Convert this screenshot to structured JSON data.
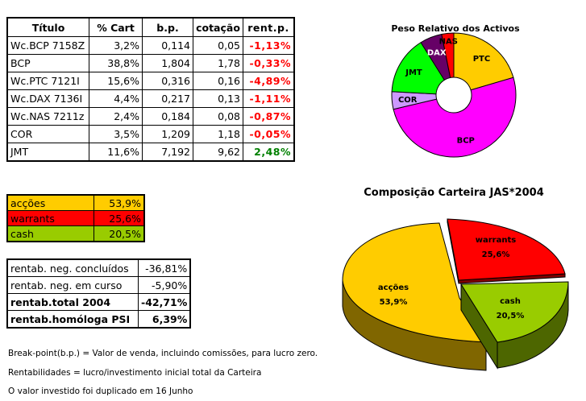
{
  "holdings_table": {
    "headers": [
      "Título",
      "% Cart",
      "b.p.",
      "cotação",
      "rent.p."
    ],
    "rows": [
      {
        "titulo": "Wc.BCP 7158Z",
        "cart": "3,2%",
        "bp": "0,114",
        "cotacao": "0,05",
        "rent": "-1,13%",
        "sign": "neg"
      },
      {
        "titulo": "BCP",
        "cart": "38,8%",
        "bp": "1,804",
        "cotacao": "1,78",
        "rent": "-0,33%",
        "sign": "neg"
      },
      {
        "titulo": "Wc.PTC 7121I",
        "cart": "15,6%",
        "bp": "0,316",
        "cotacao": "0,16",
        "rent": "-4,89%",
        "sign": "neg"
      },
      {
        "titulo": "Wc.DAX 7136I",
        "cart": "4,4%",
        "bp": "0,217",
        "cotacao": "0,13",
        "rent": "-1,11%",
        "sign": "neg"
      },
      {
        "titulo": "Wc.NAS 7211z",
        "cart": "2,4%",
        "bp": "0,184",
        "cotacao": "0,08",
        "rent": "-0,87%",
        "sign": "neg"
      },
      {
        "titulo": "COR",
        "cart": "3,5%",
        "bp": "1,209",
        "cotacao": "1,18",
        "rent": "-0,05%",
        "sign": "neg"
      },
      {
        "titulo": "JMT",
        "cart": "11,6%",
        "bp": "7,192",
        "cotacao": "9,62",
        "rent": "2,48%",
        "sign": "pos"
      }
    ]
  },
  "allocation_table": {
    "rows": [
      {
        "label": "acções",
        "value": "53,9%",
        "color": "#ffcc00"
      },
      {
        "label": "warrants",
        "value": "25,6%",
        "color": "#ff0000"
      },
      {
        "label": "cash",
        "value": "20,5%",
        "color": "#99cc00"
      }
    ]
  },
  "returns_table": {
    "rows": [
      {
        "label": "rentab. neg. concluídos",
        "value": "-36,81%",
        "bold": false
      },
      {
        "label": "rentab. neg. em curso",
        "value": "-5,90%",
        "bold": false
      },
      {
        "label": "rentab.total 2004",
        "value": "-42,71%",
        "bold": true
      },
      {
        "label": "rentab.homóloga PSI",
        "value": "6,39%",
        "bold": true
      }
    ]
  },
  "notes": [
    "Break-point(b.p.) = Valor de venda, incluindo comissões, para lucro zero.",
    "Rentabilidades = lucro/investimento inicial total da Carteira",
    "O valor investido foi duplicado em 16 Junho"
  ],
  "chart_data": [
    {
      "type": "pie",
      "variant": "doughnut",
      "title": "Peso Relativo dos Activos",
      "categories": [
        "PTC",
        "BCP",
        "COR",
        "JMT",
        "DAX",
        "NAS"
      ],
      "values": [
        15.6,
        38.8,
        3.5,
        11.6,
        4.4,
        2.4
      ],
      "colors": [
        "#ffcc00",
        "#ff00ff",
        "#cc99ff",
        "#00ff00",
        "#660066",
        "#ff0000"
      ],
      "label_colors": [
        "#000000",
        "#000000",
        "#000000",
        "#000000",
        "#ffffff",
        "#000000"
      ],
      "start_angle": "12 o'clock, clockwise",
      "legend": "none (data labels on slices)"
    },
    {
      "type": "pie",
      "variant": "3d-exploded",
      "title": "Composição Carteira JAS*2004",
      "categories": [
        "acções",
        "warrants",
        "cash"
      ],
      "values": [
        53.9,
        25.6,
        20.5
      ],
      "labels": [
        "53,9%",
        "25,6%",
        "20,5%"
      ],
      "colors": [
        "#ffcc00",
        "#ff0000",
        "#99cc00"
      ],
      "side_colors": [
        "#806600",
        "#800000",
        "#4d6600"
      ],
      "legend": "none (data labels on slices)"
    }
  ]
}
